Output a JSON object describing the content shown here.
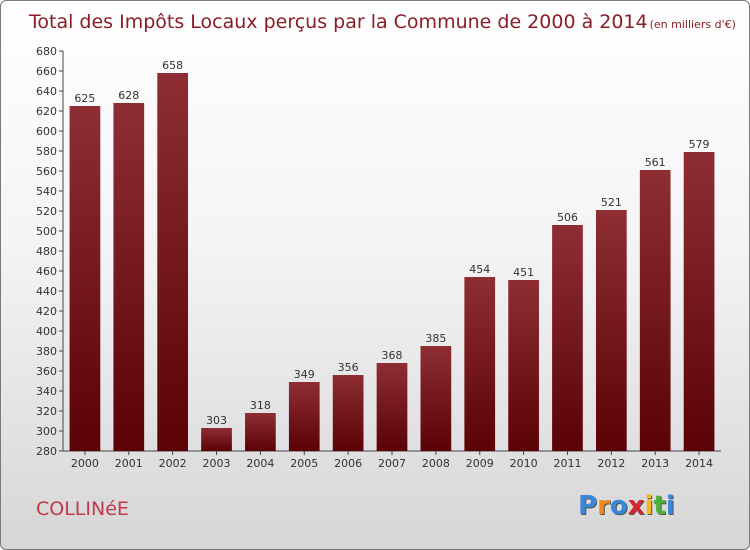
{
  "chart_data": {
    "type": "bar",
    "title": "Total des Impôts Locaux perçus par la Commune de 2000 à 2014",
    "title_unit": "(en milliers d'€)",
    "categories": [
      "2000",
      "2001",
      "2002",
      "2003",
      "2004",
      "2005",
      "2006",
      "2007",
      "2008",
      "2009",
      "2010",
      "2011",
      "2012",
      "2013",
      "2014"
    ],
    "values": [
      625,
      628,
      658,
      303,
      318,
      349,
      356,
      368,
      385,
      454,
      451,
      506,
      521,
      561,
      579
    ],
    "ylim": [
      280,
      680
    ],
    "ytick_step": 20,
    "grid": false,
    "legend": "none",
    "bar_color": "#6e0d14"
  },
  "commune": "COLLINéE",
  "logo": {
    "letters": [
      "P",
      "r",
      "o",
      "x",
      "i",
      "t",
      "i"
    ],
    "colors": [
      "#3a86d9",
      "#f08a1c",
      "#3a86d9",
      "#d9262c",
      "#f2b81c",
      "#4fb03a",
      "#3a86d9"
    ]
  }
}
